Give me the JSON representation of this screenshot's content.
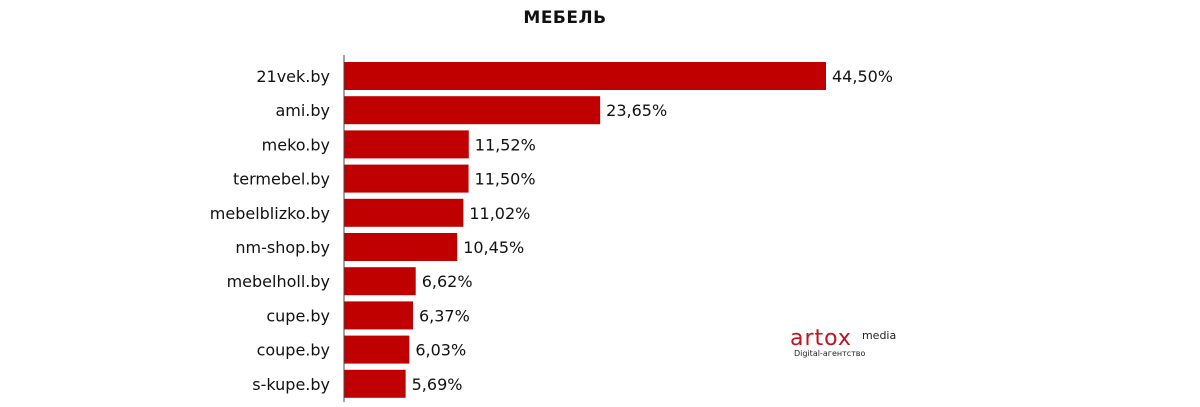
{
  "chart_data": {
    "type": "bar",
    "orientation": "horizontal",
    "title": "МЕБЕЛЬ",
    "categories": [
      "21vek.by",
      "ami.by",
      "meko.by",
      "termebel.by",
      "mebelblizko.by",
      "nm-shop.by",
      "mebelholl.by",
      "cupe.by",
      "coupe.by",
      "s-kupe.by"
    ],
    "values": [
      44.5,
      23.65,
      11.52,
      11.5,
      11.02,
      10.45,
      6.62,
      6.37,
      6.03,
      5.69
    ],
    "value_labels": [
      "44,50%",
      "23,65%",
      "11,52%",
      "11,50%",
      "11,02%",
      "10,45%",
      "6,62%",
      "6,37%",
      "6,03%",
      "5,69%"
    ],
    "bar_color": "#c00000",
    "xlim": [
      0,
      44.5
    ],
    "grid": false,
    "legend": "none"
  },
  "logo": {
    "brand": "artox",
    "suffix": "media",
    "tagline": "Digital-агентство",
    "color": "#c1121f"
  }
}
